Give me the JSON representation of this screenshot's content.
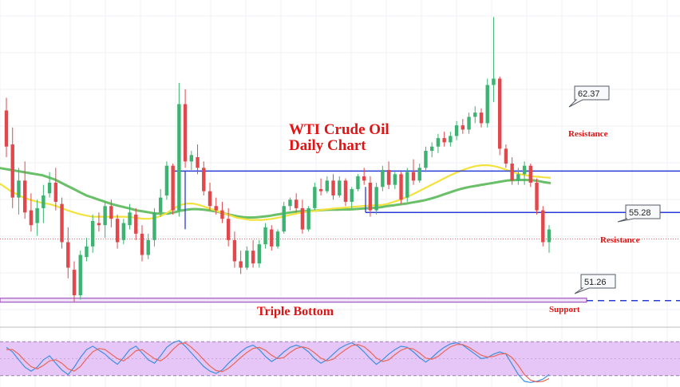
{
  "chart_data": {
    "type": "candlestick",
    "title": "WTI Crude Oil",
    "subtitle": "Daily Chart",
    "ylim": [
      49.8,
      65.2
    ],
    "price_labels": [
      "62.37",
      "55.28",
      "51.26"
    ],
    "annotations": {
      "resistance_upper": "Resistance",
      "resistance_lower": "Resistance",
      "support": "Support",
      "pattern": "Triple Bottom"
    },
    "levels": {
      "upper_channel": 57.15,
      "lower_channel": 55.2,
      "support_level": 51.05,
      "last_close_ref": 53.95
    },
    "candles": [
      [
        60.0,
        60.6,
        57.8,
        58.3
      ],
      [
        58.4,
        59.2,
        55.4,
        55.9
      ],
      [
        55.9,
        57.3,
        55.1,
        56.7
      ],
      [
        56.7,
        57.6,
        54.9,
        55.2
      ],
      [
        55.3,
        56.1,
        54.3,
        54.6
      ],
      [
        54.7,
        55.8,
        54.1,
        55.4
      ],
      [
        55.4,
        56.5,
        54.7,
        56.0
      ],
      [
        56.1,
        57.1,
        55.9,
        56.6
      ],
      [
        56.6,
        57.3,
        55.3,
        55.7
      ],
      [
        55.6,
        55.9,
        53.5,
        53.8
      ],
      [
        53.8,
        54.5,
        52.1,
        52.6
      ],
      [
        52.5,
        52.9,
        51.0,
        51.3
      ],
      [
        51.3,
        53.4,
        51.1,
        53.2
      ],
      [
        53.1,
        54.0,
        52.9,
        53.6
      ],
      [
        53.6,
        55.1,
        53.3,
        54.8
      ],
      [
        54.7,
        55.2,
        54.3,
        54.6
      ],
      [
        54.6,
        55.7,
        54.0,
        55.5
      ],
      [
        55.5,
        55.8,
        54.5,
        54.9
      ],
      [
        54.9,
        55.1,
        53.5,
        53.8
      ],
      [
        53.9,
        54.9,
        53.7,
        54.7
      ],
      [
        54.6,
        55.6,
        54.4,
        55.2
      ],
      [
        55.1,
        55.4,
        53.9,
        54.2
      ],
      [
        54.2,
        54.6,
        52.9,
        53.2
      ],
      [
        53.2,
        54.2,
        53.0,
        53.9
      ],
      [
        53.9,
        55.4,
        53.6,
        55.2
      ],
      [
        55.2,
        56.3,
        55.0,
        55.9
      ],
      [
        56.0,
        57.6,
        55.8,
        57.4
      ],
      [
        57.4,
        57.5,
        55.1,
        55.3
      ],
      [
        55.3,
        61.3,
        55.0,
        60.3
      ],
      [
        60.3,
        61.0,
        57.3,
        57.6
      ],
      [
        57.6,
        58.1,
        57.2,
        57.9
      ],
      [
        57.8,
        58.4,
        57.0,
        57.3
      ],
      [
        57.3,
        57.6,
        56.0,
        56.2
      ],
      [
        56.2,
        56.6,
        55.3,
        55.5
      ],
      [
        55.5,
        55.9,
        55.1,
        55.3
      ],
      [
        55.3,
        55.7,
        54.7,
        54.9
      ],
      [
        54.9,
        55.4,
        53.6,
        53.9
      ],
      [
        53.9,
        54.3,
        52.6,
        52.9
      ],
      [
        52.9,
        53.4,
        52.3,
        52.6
      ],
      [
        52.6,
        53.6,
        52.5,
        53.4
      ],
      [
        53.4,
        53.9,
        52.6,
        52.8
      ],
      [
        52.8,
        53.9,
        52.6,
        53.7
      ],
      [
        53.7,
        54.7,
        53.5,
        54.5
      ],
      [
        54.4,
        54.6,
        53.4,
        53.6
      ],
      [
        53.6,
        54.4,
        53.5,
        54.3
      ],
      [
        54.3,
        55.7,
        54.2,
        55.5
      ],
      [
        55.5,
        55.9,
        55.3,
        55.8
      ],
      [
        55.8,
        56.1,
        55.2,
        55.4
      ],
      [
        55.4,
        55.8,
        54.2,
        54.4
      ],
      [
        54.4,
        55.5,
        54.3,
        55.4
      ],
      [
        55.4,
        56.6,
        55.3,
        56.4
      ],
      [
        56.3,
        56.8,
        56.0,
        56.2
      ],
      [
        56.2,
        56.9,
        56.1,
        56.7
      ],
      [
        56.7,
        57.0,
        55.8,
        56.0
      ],
      [
        56.0,
        56.9,
        55.9,
        56.7
      ],
      [
        56.7,
        56.8,
        55.5,
        55.7
      ],
      [
        55.7,
        56.4,
        55.4,
        56.3
      ],
      [
        56.3,
        57.0,
        56.2,
        56.9
      ],
      [
        56.9,
        57.3,
        56.5,
        56.7
      ],
      [
        56.6,
        56.9,
        55.0,
        55.3
      ],
      [
        55.3,
        56.6,
        55.1,
        56.4
      ],
      [
        56.4,
        57.4,
        56.2,
        57.2
      ],
      [
        57.2,
        57.6,
        56.3,
        56.5
      ],
      [
        56.5,
        57.1,
        56.3,
        57.0
      ],
      [
        57.0,
        57.1,
        55.6,
        55.8
      ],
      [
        55.9,
        57.3,
        55.7,
        57.1
      ],
      [
        57.1,
        57.7,
        56.5,
        56.7
      ],
      [
        56.7,
        57.5,
        56.6,
        57.3
      ],
      [
        57.3,
        58.3,
        57.1,
        58.1
      ],
      [
        58.1,
        58.5,
        57.8,
        58.3
      ],
      [
        58.3,
        58.9,
        58.0,
        58.7
      ],
      [
        58.7,
        59.0,
        58.3,
        58.5
      ],
      [
        58.5,
        59.0,
        58.3,
        58.8
      ],
      [
        58.8,
        59.5,
        58.6,
        59.3
      ],
      [
        59.3,
        59.6,
        58.9,
        59.1
      ],
      [
        59.1,
        59.9,
        58.9,
        59.7
      ],
      [
        59.7,
        60.2,
        59.4,
        59.9
      ],
      [
        59.9,
        60.1,
        59.2,
        59.4
      ],
      [
        59.4,
        61.5,
        59.2,
        61.2
      ],
      [
        61.2,
        64.4,
        60.4,
        61.5
      ],
      [
        61.5,
        61.6,
        57.9,
        58.2
      ],
      [
        58.2,
        58.4,
        57.3,
        57.5
      ],
      [
        57.5,
        57.8,
        56.5,
        56.7
      ],
      [
        56.7,
        57.3,
        56.5,
        57.0
      ],
      [
        57.0,
        57.6,
        56.5,
        57.4
      ],
      [
        57.4,
        57.5,
        56.4,
        56.6
      ],
      [
        56.6,
        56.8,
        55.1,
        55.3
      ],
      [
        55.3,
        55.5,
        53.6,
        53.8
      ],
      [
        53.8,
        54.6,
        53.3,
        54.4
      ]
    ],
    "series": [
      {
        "name": "",
        "color": "#6abf69",
        "values": [
          57.3,
          57.25,
          57.2,
          57.15,
          57.1,
          57.05,
          57.0,
          56.95,
          56.85,
          56.75,
          56.6,
          56.45,
          56.3,
          56.15,
          56.0,
          55.9,
          55.8,
          55.7,
          55.6,
          55.52,
          55.45,
          55.38,
          55.3,
          55.25,
          55.2,
          55.15,
          55.15,
          55.15,
          55.2,
          55.28,
          55.33,
          55.36,
          55.35,
          55.32,
          55.28,
          55.23,
          55.15,
          55.08,
          55.02,
          54.98,
          54.96,
          54.97,
          55.0,
          55.03,
          55.08,
          55.13,
          55.18,
          55.22,
          55.25,
          55.26,
          55.28,
          55.3,
          55.32,
          55.33,
          55.33,
          55.34,
          55.34,
          55.36,
          55.38,
          55.4,
          55.42,
          55.45,
          55.5,
          55.54,
          55.58,
          55.62,
          55.67,
          55.72,
          55.78,
          55.86,
          55.95,
          56.05,
          56.15,
          56.25,
          56.33,
          56.4,
          56.45,
          56.5,
          56.55,
          56.6,
          56.65,
          56.7,
          56.72,
          56.73,
          56.73,
          56.72,
          56.68,
          56.62,
          56.58
        ]
      },
      {
        "name": "",
        "color": "#f3e23e",
        "values": [
          56.6,
          56.4,
          56.2,
          56.05,
          55.9,
          55.8,
          55.72,
          55.65,
          55.6,
          55.52,
          55.42,
          55.3,
          55.2,
          55.12,
          55.05,
          55.0,
          55.0,
          55.0,
          55.0,
          55.0,
          55.0,
          54.98,
          54.95,
          54.9,
          54.9,
          54.95,
          55.05,
          55.2,
          55.4,
          55.55,
          55.62,
          55.62,
          55.55,
          55.45,
          55.35,
          55.25,
          55.15,
          55.05,
          54.95,
          54.9,
          54.85,
          54.85,
          54.85,
          54.88,
          54.92,
          54.98,
          55.05,
          55.12,
          55.18,
          55.22,
          55.26,
          55.3,
          55.34,
          55.37,
          55.4,
          55.42,
          55.45,
          55.48,
          55.5,
          55.52,
          55.54,
          55.55,
          55.6,
          55.7,
          55.8,
          55.92,
          56.05,
          56.2,
          56.35,
          56.5,
          56.65,
          56.8,
          56.95,
          57.08,
          57.2,
          57.3,
          57.38,
          57.42,
          57.42,
          57.38,
          57.3,
          57.2,
          57.1,
          57.0,
          56.95,
          56.9,
          56.88,
          56.85,
          56.83
        ]
      }
    ],
    "oscillator": {
      "ylim": [
        0,
        100
      ],
      "band": [
        20,
        80
      ],
      "k": [
        70,
        62,
        48,
        35,
        28,
        35,
        48,
        55,
        42,
        30,
        22,
        35,
        52,
        66,
        72,
        65,
        58,
        48,
        40,
        52,
        66,
        72,
        60,
        48,
        42,
        55,
        70,
        78,
        82,
        72,
        60,
        48,
        36,
        28,
        24,
        30,
        42,
        52,
        62,
        70,
        74,
        66,
        54,
        45,
        52,
        62,
        70,
        74,
        70,
        62,
        50,
        42,
        48,
        58,
        68,
        74,
        78,
        72,
        62,
        50,
        40,
        48,
        58,
        66,
        72,
        70,
        62,
        52,
        44,
        52,
        62,
        70,
        76,
        78,
        74,
        66,
        58,
        50,
        52,
        58,
        62,
        58,
        40,
        22,
        10,
        8,
        10,
        14,
        22
      ],
      "d": [
        66,
        66,
        58,
        46,
        36,
        32,
        38,
        46,
        48,
        42,
        32,
        28,
        36,
        50,
        62,
        68,
        66,
        58,
        50,
        46,
        54,
        64,
        66,
        58,
        50,
        46,
        54,
        66,
        76,
        78,
        70,
        60,
        48,
        37,
        29,
        27,
        33,
        42,
        52,
        61,
        68,
        70,
        65,
        56,
        50,
        52,
        61,
        68,
        71,
        68,
        60,
        51,
        46,
        49,
        58,
        66,
        73,
        75,
        71,
        62,
        51,
        45,
        48,
        57,
        65,
        69,
        67,
        60,
        51,
        49,
        54,
        63,
        71,
        75,
        75,
        70,
        63,
        56,
        53,
        54,
        58,
        59,
        52,
        38,
        22,
        12,
        9,
        10,
        15
      ]
    }
  }
}
